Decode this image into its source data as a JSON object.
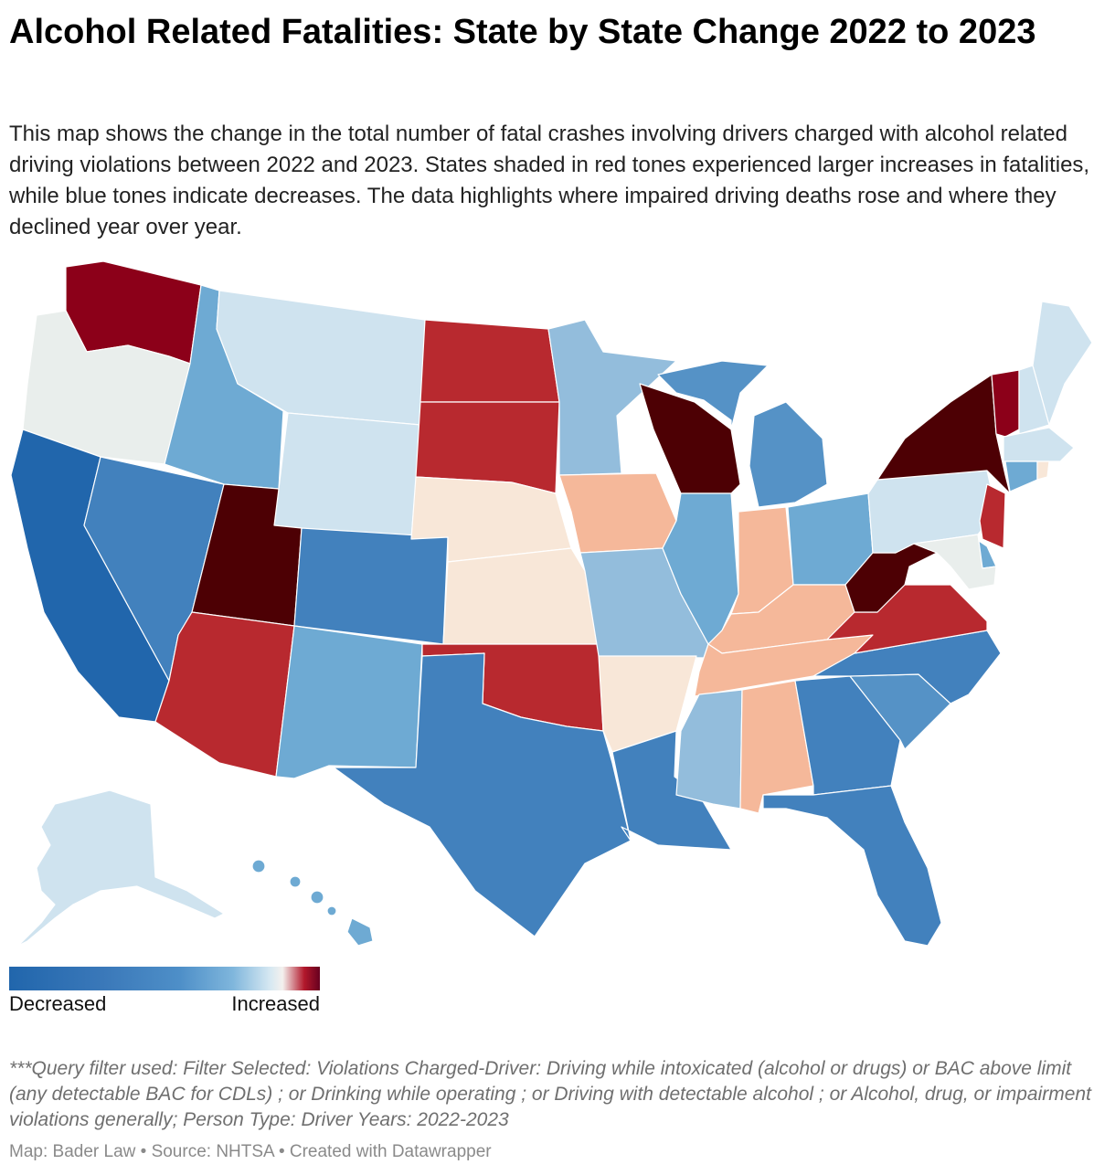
{
  "title": "Alcohol Related Fatalities: State by State Change 2022 to 2023",
  "description": "This map shows the change in the total number of fatal crashes involving drivers charged with alcohol related driving violations between 2022 and 2023. States shaded in red tones experienced larger increases in fatalities, while blue tones indicate decreases. The data highlights where impaired driving deaths rose and where they declined year over year.",
  "legend": {
    "low_label": "Decreased",
    "high_label": "Increased"
  },
  "footnote": "***Query filter used: Filter Selected: Violations Charged-Driver: Driving while intoxicated (alcohol or drugs) or BAC above limit (any detectable BAC for CDLs) ; or Drinking while operating ; or Driving with detectable alcohol ; or Alcohol, drug, or impairment violations generally; Person Type: Driver Years: 2022-2023",
  "credit": "Map: Bader Law • Source: NHTSA • Created with Datawrapper",
  "colors": {
    "blue_dark": "#2166ac",
    "blue": "#4281bd",
    "blue_mid": "#5592c6",
    "blue_light": "#6eaad3",
    "blue_lighter": "#93bddc",
    "blue_pale": "#cfe3ef",
    "neutral": "#e9eeec",
    "peach_pale": "#f8e7d8",
    "peach": "#f5b89a",
    "red": "#b8292f",
    "red_dark": "#8c0019",
    "red_darkest": "#4d0004"
  },
  "states": {
    "WA": "red_dark",
    "OR": "neutral",
    "CA": "blue_dark",
    "NV": "blue",
    "ID": "blue_light",
    "MT": "blue_pale",
    "WY": "blue_pale",
    "UT": "red_darkest",
    "AZ": "red",
    "CO": "blue",
    "NM": "blue_light",
    "ND": "red",
    "SD": "red",
    "NE": "peach_pale",
    "KS": "peach_pale",
    "OK": "red",
    "TX": "blue",
    "MN": "blue_lighter",
    "IA": "peach",
    "MO": "blue_lighter",
    "AR": "peach_pale",
    "LA": "blue",
    "WI": "red_darkest",
    "IL": "blue_light",
    "MI": "blue_mid",
    "IN": "peach",
    "OH": "blue_light",
    "KY": "peach",
    "TN": "peach",
    "MS": "blue_lighter",
    "AL": "peach",
    "GA": "blue",
    "FL": "blue",
    "SC": "blue_mid",
    "NC": "blue",
    "VA": "red",
    "WV": "red_darkest",
    "PA": "blue_pale",
    "NY": "red_darkest",
    "VT": "red_dark",
    "NH": "blue_pale",
    "ME": "blue_pale",
    "MA": "blue_pale",
    "CT": "blue_light",
    "RI": "peach_pale",
    "NJ": "red",
    "DE": "blue_light",
    "MD": "neutral",
    "AK": "blue_pale",
    "HI": "blue_light"
  }
}
